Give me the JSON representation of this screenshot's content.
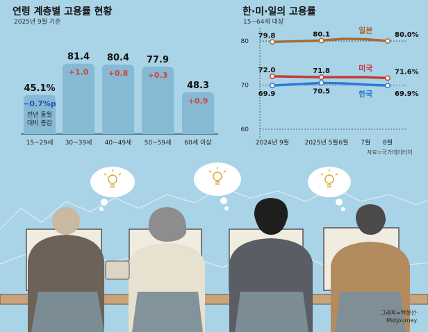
{
  "chart_data": [
    {
      "type": "bar",
      "title": "연령 계층별 고용률 현황",
      "subtitle": "2025년 9월 기준",
      "categories": [
        "15~29세",
        "30~39세",
        "40~49세",
        "50~59세",
        "60세 이상"
      ],
      "values": [
        45.1,
        81.4,
        80.4,
        77.9,
        48.3
      ],
      "value_labels": [
        "45.1%",
        "81.4",
        "80.4",
        "77.9",
        "48.3"
      ],
      "change_labels": [
        "−0.7%p",
        "+1.0",
        "+0.8",
        "+0.3",
        "+0.9"
      ],
      "change_note": [
        "전년 동월",
        "대비 증감"
      ],
      "ylim": [
        0,
        90
      ],
      "colors": {
        "bar": "#86b9d3",
        "positive": "#d0453a",
        "negative": "#1f56b3"
      }
    },
    {
      "type": "line",
      "title": "한·미·일의 고용률",
      "subtitle": "15~64세 대상",
      "x": [
        "2024년 9월",
        "2025년 5월",
        "6월",
        "7월",
        "8월"
      ],
      "yticks": [
        80,
        70,
        60
      ],
      "ylim": [
        60,
        83
      ],
      "series": [
        {
          "name": "일본",
          "points": [
            [
              0,
              79.8
            ],
            [
              1.0,
              80.1
            ],
            [
              1.45,
              80.5
            ],
            [
              1.9,
              80.4
            ],
            [
              2.35,
              80.0
            ]
          ],
          "labels": [
            "79.8",
            "80.1",
            "80.0%"
          ],
          "color": "#a66a34"
        },
        {
          "name": "미국",
          "points": [
            [
              0,
              72.0
            ],
            [
              1.0,
              71.8
            ],
            [
              1.45,
              71.8
            ],
            [
              1.9,
              71.8
            ],
            [
              2.35,
              71.6
            ]
          ],
          "labels": [
            "72.0",
            "71.8",
            "71.6%"
          ],
          "color": "#c63a32"
        },
        {
          "name": "한국",
          "points": [
            [
              0,
              69.9
            ],
            [
              1.0,
              70.5
            ],
            [
              1.45,
              70.4
            ],
            [
              1.9,
              70.1
            ],
            [
              2.35,
              69.9
            ]
          ],
          "labels": [
            "69.9",
            "70.5",
            "69.9%"
          ],
          "color": "#2e7ad6"
        }
      ],
      "source": "자료=국가데이터처"
    }
  ],
  "credit": [
    "그래픽=백형선·",
    "Midjourney"
  ],
  "colors": {
    "background": "#a9d3e6"
  }
}
